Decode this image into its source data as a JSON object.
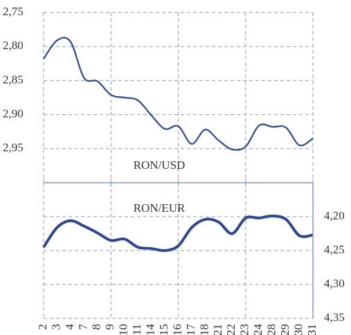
{
  "chart_data": [
    {
      "type": "line",
      "title": "RON/USD",
      "series": [
        {
          "name": "RON/USD",
          "color": "#2c4797",
          "values": [
            2.818,
            2.791,
            2.793,
            2.846,
            2.851,
            2.871,
            2.875,
            2.879,
            2.901,
            2.921,
            2.917,
            2.943,
            2.922,
            2.938,
            2.951,
            2.947,
            2.916,
            2.918,
            2.919,
            2.945,
            2.935
          ]
        }
      ],
      "ylim": [
        2.75,
        3.0
      ],
      "inverted": true,
      "grid": true,
      "yticks": [
        {
          "value": 2.75,
          "label": "2,75"
        },
        {
          "value": 2.8,
          "label": "2,80"
        },
        {
          "value": 2.85,
          "label": "2,85"
        },
        {
          "value": 2.9,
          "label": "2,90"
        },
        {
          "value": 2.95,
          "label": "2,95"
        }
      ]
    },
    {
      "type": "line",
      "title": "RON/EUR",
      "categories": [
        "2",
        "3",
        "4",
        "7",
        "8",
        "9",
        "10",
        "11",
        "14",
        "15",
        "16",
        "17",
        "18",
        "21",
        "22",
        "23",
        "24",
        "28",
        "29",
        "30",
        "31"
      ],
      "series": [
        {
          "name": "RON/EUR",
          "color": "#2c4797",
          "values": [
            4.245,
            4.216,
            4.206,
            4.214,
            4.224,
            4.235,
            4.233,
            4.245,
            4.247,
            4.25,
            4.243,
            4.216,
            4.204,
            4.208,
            4.225,
            4.202,
            4.202,
            4.199,
            4.204,
            4.228,
            4.227
          ]
        }
      ],
      "ylim": [
        4.15,
        4.35
      ],
      "inverted": true,
      "grid": true,
      "yticks": [
        {
          "value": 4.2,
          "label": "4,20"
        },
        {
          "value": 4.25,
          "label": "4,25"
        },
        {
          "value": 4.3,
          "label": "4,30"
        },
        {
          "value": 4.35,
          "label": "4,35"
        }
      ]
    }
  ]
}
